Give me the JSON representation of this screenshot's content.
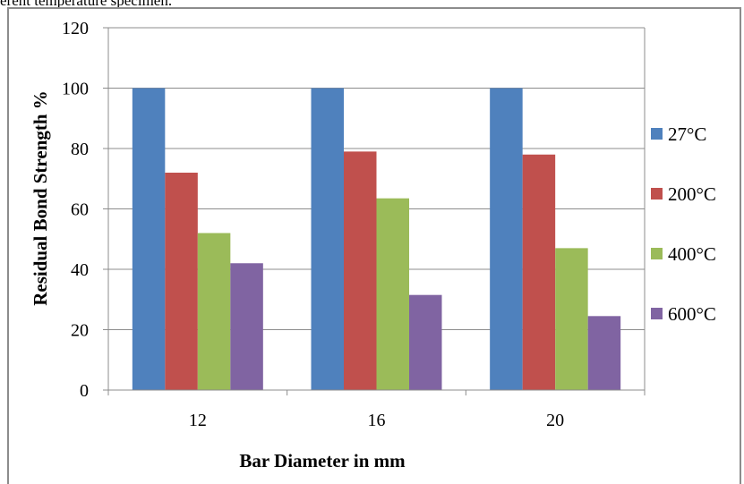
{
  "header": {
    "text": "erent temperature specimen."
  },
  "chart_data": {
    "type": "bar",
    "title": "",
    "xlabel": "Bar Diameter in mm",
    "ylabel": "Residual  Bond Strength %",
    "categories": [
      "12",
      "16",
      "20"
    ],
    "ylim": [
      0,
      120
    ],
    "yticks": [
      0,
      20,
      40,
      60,
      80,
      100,
      120
    ],
    "grid": "horizontal",
    "legend_position": "right",
    "series": [
      {
        "name": "27°C",
        "color": "#4f81bd",
        "values": [
          100,
          100,
          100
        ]
      },
      {
        "name": "200°C",
        "color": "#c0504d",
        "values": [
          72,
          79,
          78
        ]
      },
      {
        "name": "400°C",
        "color": "#9bbb59",
        "values": [
          52,
          63.5,
          47
        ]
      },
      {
        "name": "600°C",
        "color": "#8064a2",
        "values": [
          42,
          31.5,
          24.5
        ]
      }
    ]
  }
}
